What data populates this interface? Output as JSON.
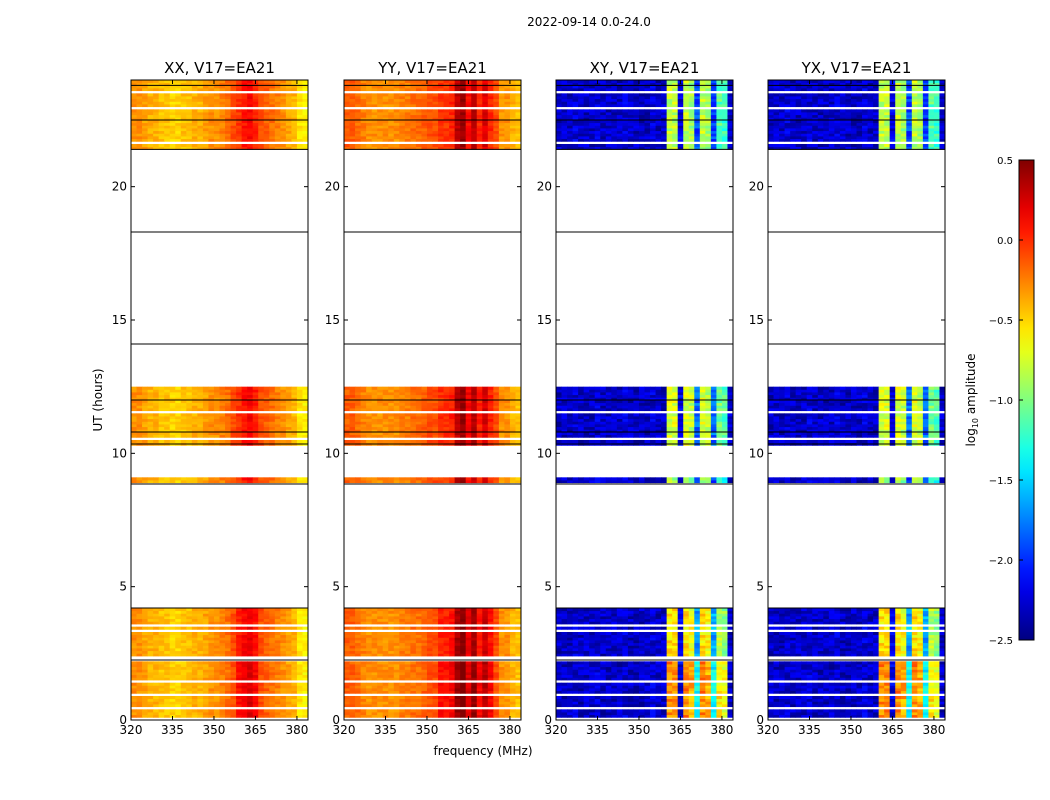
{
  "chart_data": {
    "type": "heatmap",
    "title": "2022-09-14 0.0-24.0",
    "xlabel": "frequency (MHz)",
    "ylabel": "UT (hours)",
    "xlim": [
      320,
      384
    ],
    "ylim": [
      0,
      24
    ],
    "xticks": [
      "320",
      "335",
      "350",
      "365",
      "380"
    ],
    "xtick_values": [
      320,
      335,
      350,
      365,
      380
    ],
    "yticks": [
      "0",
      "5",
      "10",
      "15",
      "20"
    ],
    "ytick_values": [
      0,
      5,
      10,
      15,
      20
    ],
    "colorbar": {
      "label_main": "log",
      "label_sub": "10",
      "label_rest": " amplitude",
      "range": [
        -2.5,
        0.5
      ],
      "colormap": "jet",
      "ticks": [
        "0.5",
        "0.0",
        "−0.5",
        "−1.0",
        "−1.5",
        "−2.0",
        "−2.5"
      ],
      "tick_values": [
        0.5,
        0.0,
        -0.5,
        -1.0,
        -1.5,
        -2.0,
        -2.5
      ]
    },
    "freq_bin_width_mhz": 2,
    "time_bands_hours": [
      [
        0.1,
        2.2
      ],
      [
        2.4,
        4.2
      ],
      [
        8.9,
        9.1
      ],
      [
        10.3,
        12.5
      ],
      [
        21.4,
        24.0
      ]
    ],
    "band_boost": [
      0.35,
      0.2,
      0.0,
      0.1,
      0.05
    ],
    "gap_rows_hours": [
      0.4,
      0.85,
      1.4,
      3.3,
      3.55,
      10.5,
      11.5,
      21.6,
      22.9,
      23.5
    ],
    "separator_lines_hours": [
      2.25,
      4.2,
      8.85,
      10.35,
      10.8,
      12.0,
      14.1,
      18.3,
      21.4,
      22.5,
      23.8
    ],
    "panels": [
      {
        "title": "XX, V17=EA21",
        "active_boost": false,
        "spectrum": [
          -0.3,
          -0.3,
          -0.35,
          -0.4,
          -0.4,
          -0.45,
          -0.45,
          -0.5,
          -0.5,
          -0.45,
          -0.45,
          -0.4,
          -0.4,
          -0.35,
          -0.3,
          -0.3,
          -0.25,
          -0.2,
          -0.1,
          -0.05,
          0.05,
          0.1,
          0.0,
          -0.1,
          -0.15,
          -0.2,
          -0.25,
          -0.3,
          -0.35,
          -0.4,
          -0.55,
          -0.6
        ]
      },
      {
        "title": "YY, V17=EA21",
        "active_boost": false,
        "spectrum": [
          -0.15,
          -0.15,
          -0.2,
          -0.25,
          -0.3,
          -0.3,
          -0.3,
          -0.3,
          -0.3,
          -0.3,
          -0.25,
          -0.25,
          -0.2,
          -0.2,
          -0.15,
          -0.1,
          -0.1,
          -0.05,
          -0.05,
          0.0,
          0.3,
          0.4,
          0.1,
          0.3,
          0.0,
          0.2,
          0.0,
          -0.1,
          -0.3,
          -0.3,
          -0.4,
          -0.45
        ]
      },
      {
        "title": "XY, V17=EA21",
        "active_boost": true,
        "spectrum": [
          -2.3,
          -2.3,
          -2.3,
          -2.25,
          -2.3,
          -2.3,
          -2.3,
          -2.25,
          -2.3,
          -2.3,
          -2.3,
          -2.3,
          -2.25,
          -2.3,
          -2.3,
          -2.3,
          -2.3,
          -2.25,
          -2.3,
          -2.3,
          -0.9,
          -0.9,
          -2.2,
          -0.9,
          -1.0,
          -2.0,
          -0.9,
          -1.0,
          -2.0,
          -1.2,
          -1.3,
          -2.3
        ]
      },
      {
        "title": "YX, V17=EA21",
        "active_boost": true,
        "spectrum": [
          -2.3,
          -2.3,
          -2.3,
          -2.25,
          -2.3,
          -2.3,
          -2.3,
          -2.25,
          -2.3,
          -2.3,
          -2.3,
          -2.3,
          -2.25,
          -2.3,
          -2.3,
          -2.3,
          -2.3,
          -2.25,
          -2.3,
          -2.3,
          -0.9,
          -0.9,
          -2.2,
          -0.9,
          -1.0,
          -2.0,
          -0.9,
          -1.0,
          -2.0,
          -1.2,
          -1.3,
          -2.3
        ]
      }
    ]
  }
}
